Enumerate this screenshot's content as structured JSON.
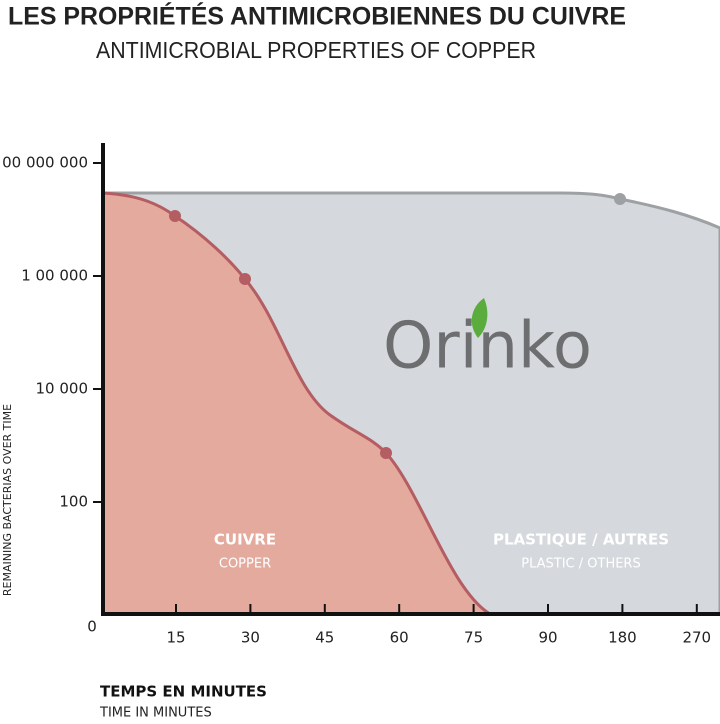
{
  "chart_data": {
    "type": "area",
    "title": "LES PROPRIÉTÉS ANTIMICROBIENNES DU CUIVRE",
    "subtitle": "ANTIMICROBIAL PROPERTIES OF COPPER",
    "categories": [
      "0",
      "15",
      "30",
      "45",
      "60",
      "75",
      "90",
      "180",
      "270"
    ],
    "y_categories": [
      "0",
      "100",
      "10 000",
      "1 00 000",
      "00 000 000"
    ],
    "y_label": "REMAINING BACTERIAS OVER TIME",
    "x_label": "TEMPS EN MINUTES",
    "x_sublabel": "TIME IN MINUTES",
    "series": [
      {
        "name": "CUIVRE",
        "subname": "COPPER",
        "color": "#e4aa9e"
      },
      {
        "name": "PLASTIQUE / AUTRES",
        "subname": "PLASTIC / OTHERS",
        "color": "#d5d8dc"
      }
    ],
    "logo": "Orinko"
  }
}
